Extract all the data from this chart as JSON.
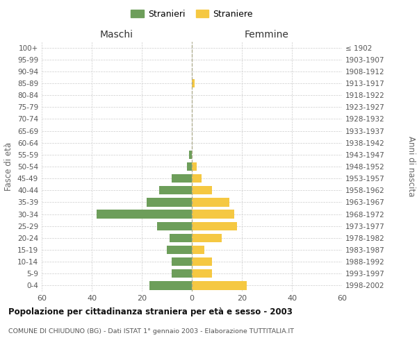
{
  "age_groups": [
    "0-4",
    "5-9",
    "10-14",
    "15-19",
    "20-24",
    "25-29",
    "30-34",
    "35-39",
    "40-44",
    "45-49",
    "50-54",
    "55-59",
    "60-64",
    "65-69",
    "70-74",
    "75-79",
    "80-84",
    "85-89",
    "90-94",
    "95-99",
    "100+"
  ],
  "birth_years": [
    "1998-2002",
    "1993-1997",
    "1988-1992",
    "1983-1987",
    "1978-1982",
    "1973-1977",
    "1968-1972",
    "1963-1967",
    "1958-1962",
    "1953-1957",
    "1948-1952",
    "1943-1947",
    "1938-1942",
    "1933-1937",
    "1928-1932",
    "1923-1927",
    "1918-1922",
    "1913-1917",
    "1908-1912",
    "1903-1907",
    "≤ 1902"
  ],
  "maschi": [
    17,
    8,
    8,
    10,
    9,
    14,
    38,
    18,
    13,
    8,
    2,
    1,
    0,
    0,
    0,
    0,
    0,
    0,
    0,
    0,
    0
  ],
  "femmine": [
    22,
    8,
    8,
    5,
    12,
    18,
    17,
    15,
    8,
    4,
    2,
    0,
    0,
    0,
    0,
    0,
    0,
    1,
    0,
    0,
    0
  ],
  "color_maschi": "#6d9e5a",
  "color_femmine": "#f5c842",
  "title": "Popolazione per cittadinanza straniera per età e sesso - 2003",
  "subtitle": "COMUNE DI CHIUDUNO (BG) - Dati ISTAT 1° gennaio 2003 - Elaborazione TUTTITALIA.IT",
  "ylabel_left": "Fasce di età",
  "ylabel_right": "Anni di nascita",
  "xlabel_left": "Maschi",
  "xlabel_right": "Femmine",
  "legend_maschi": "Stranieri",
  "legend_femmine": "Straniere",
  "xlim": 60,
  "xticks": [
    -60,
    -40,
    -20,
    0,
    20,
    40,
    60
  ],
  "xtick_labels": [
    "60",
    "40",
    "20",
    "0",
    "20",
    "40",
    "60"
  ],
  "background_color": "#ffffff",
  "grid_color": "#cccccc"
}
